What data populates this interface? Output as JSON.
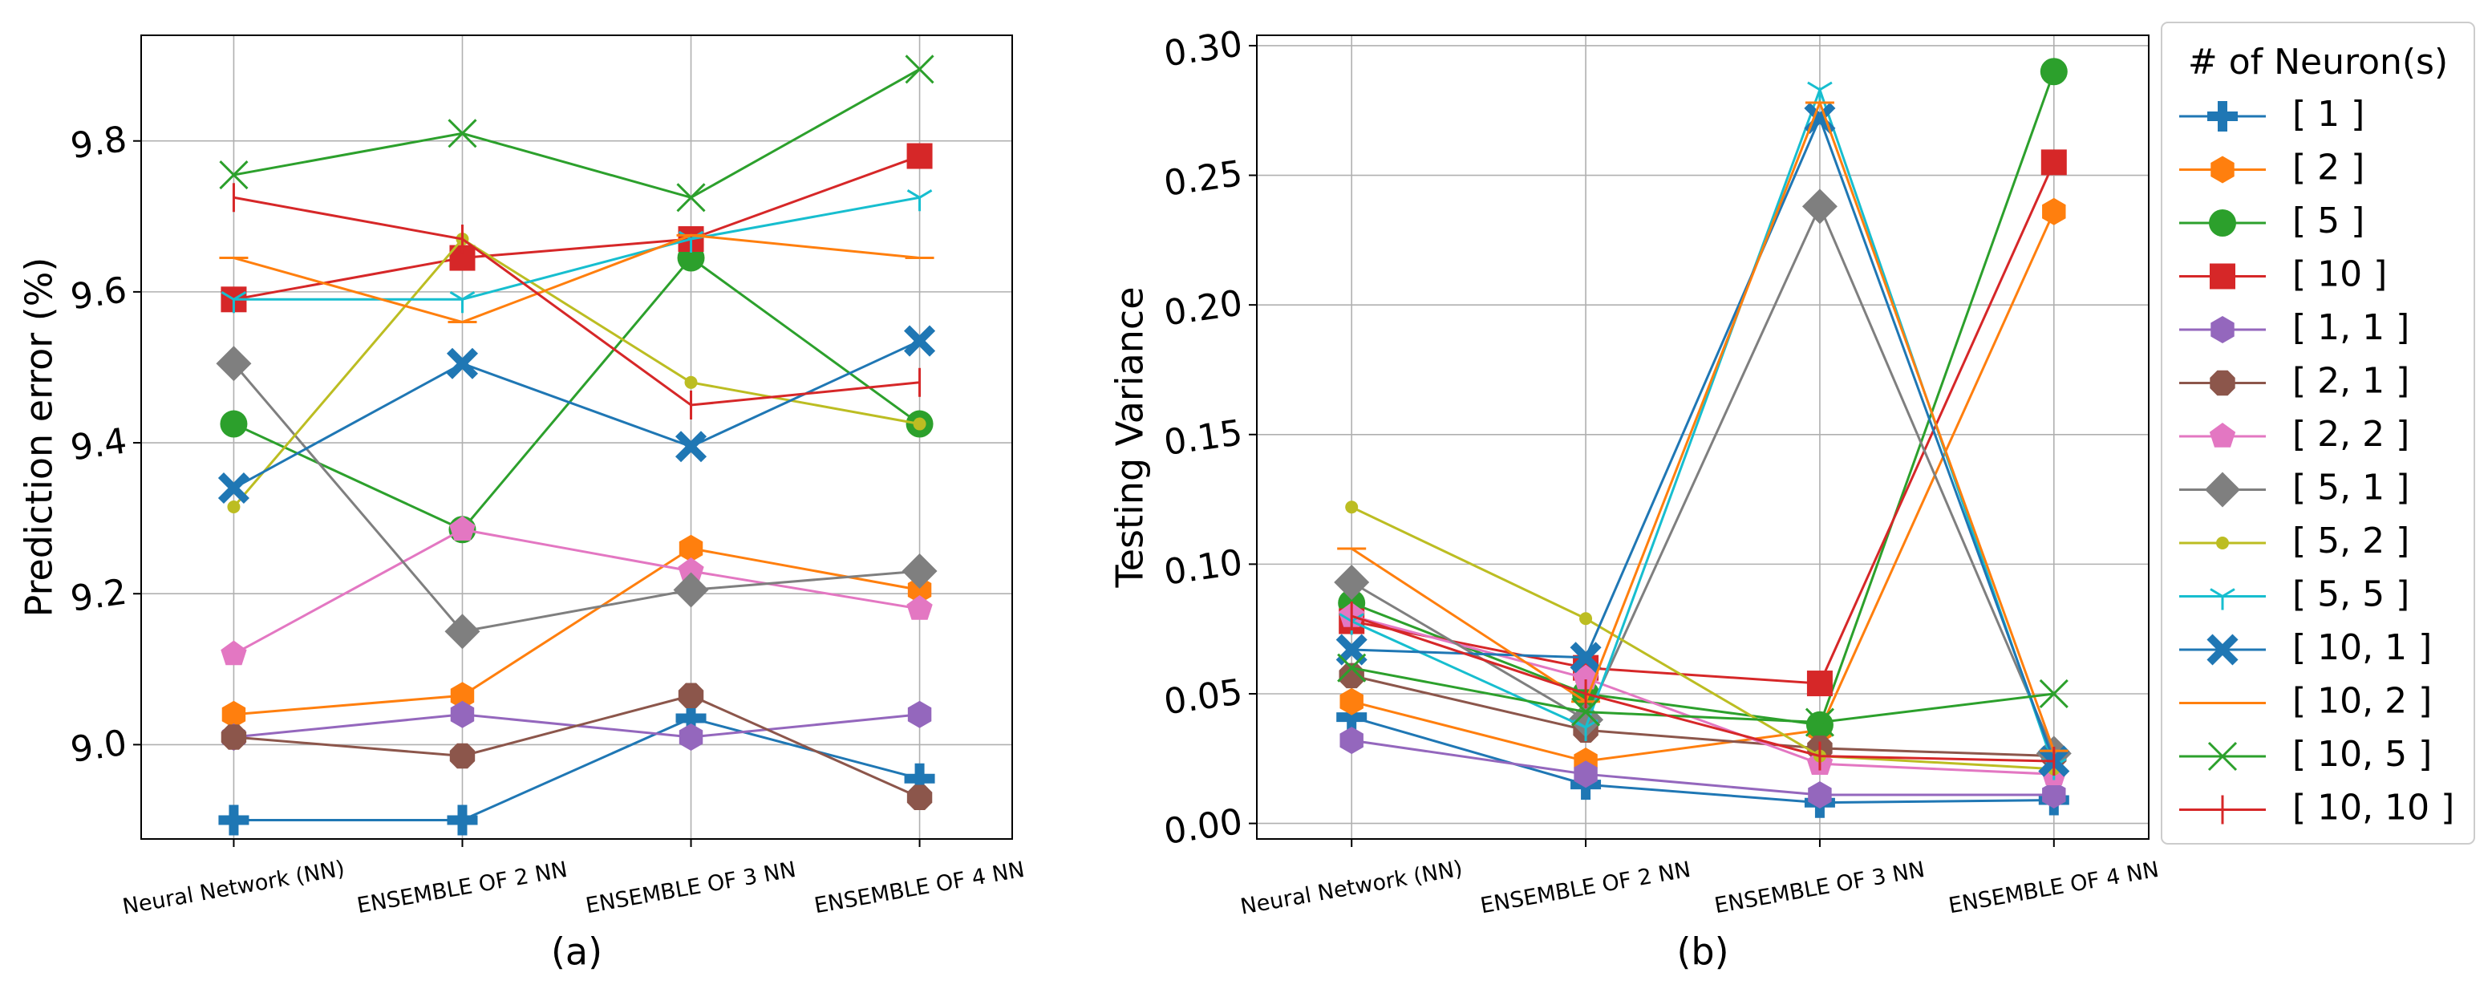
{
  "chart_data": [
    {
      "type": "line",
      "panel_label": "(a)",
      "title": "",
      "xlabel": "",
      "ylabel": "Prediction error (%)",
      "categories": [
        "Neural Network (NN)",
        "ENSEMBLE OF 2 NN",
        "ENSEMBLE OF 3 NN",
        "ENSEMBLE OF 4 NN"
      ],
      "ylim": [
        8.875,
        9.94
      ],
      "yticks": [
        9.0,
        9.2,
        9.4,
        9.6,
        9.8
      ],
      "ytick_labels": [
        "9.0",
        "9.2",
        "9.4",
        "9.6",
        "9.8"
      ],
      "grid": true,
      "series": [
        {
          "name": "[ 1 ]",
          "values": [
            8.9,
            8.9,
            9.035,
            8.955
          ]
        },
        {
          "name": "[ 2 ]",
          "values": [
            9.04,
            9.065,
            9.26,
            9.205
          ]
        },
        {
          "name": "[ 5 ]",
          "values": [
            9.425,
            9.285,
            9.645,
            9.425
          ]
        },
        {
          "name": "[ 10 ]",
          "values": [
            9.59,
            9.645,
            9.67,
            9.78
          ]
        },
        {
          "name": "[ 1, 1 ]",
          "values": [
            9.01,
            9.04,
            9.01,
            9.04
          ]
        },
        {
          "name": "[ 2, 1 ]",
          "values": [
            9.01,
            8.985,
            9.065,
            8.93
          ]
        },
        {
          "name": "[ 2, 2 ]",
          "values": [
            9.12,
            9.285,
            9.23,
            9.18
          ]
        },
        {
          "name": "[ 5, 1 ]",
          "values": [
            9.505,
            9.15,
            9.205,
            9.23
          ]
        },
        {
          "name": "[ 5, 2 ]",
          "values": [
            9.315,
            9.67,
            9.48,
            9.425
          ]
        },
        {
          "name": "[ 5, 5 ]",
          "values": [
            9.59,
            9.59,
            9.67,
            9.725
          ]
        },
        {
          "name": "[ 10, 1 ]",
          "values": [
            9.34,
            9.505,
            9.395,
            9.535
          ]
        },
        {
          "name": "[ 10, 2 ]",
          "values": [
            9.645,
            9.56,
            9.675,
            9.645
          ]
        },
        {
          "name": "[ 10, 5 ]",
          "values": [
            9.755,
            9.81,
            9.725,
            9.895
          ]
        },
        {
          "name": "[ 10, 10 ]",
          "values": [
            9.725,
            9.67,
            9.45,
            9.48
          ]
        }
      ]
    },
    {
      "type": "line",
      "panel_label": "(b)",
      "title": "",
      "xlabel": "",
      "ylabel": "Testing Variance",
      "categories": [
        "Neural Network (NN)",
        "ENSEMBLE OF 2 NN",
        "ENSEMBLE OF 3 NN",
        "ENSEMBLE OF 4 NN"
      ],
      "ylim": [
        -0.006,
        0.304
      ],
      "yticks": [
        0.0,
        0.05,
        0.1,
        0.15,
        0.2,
        0.25,
        0.3
      ],
      "ytick_labels": [
        "0.00",
        "0.05",
        "0.10",
        "0.15",
        "0.20",
        "0.25",
        "0.30"
      ],
      "grid": true,
      "series": [
        {
          "name": "[ 1 ]",
          "values": [
            0.041,
            0.015,
            0.008,
            0.009
          ]
        },
        {
          "name": "[ 2 ]",
          "values": [
            0.047,
            0.024,
            0.036,
            0.236
          ]
        },
        {
          "name": "[ 5 ]",
          "values": [
            0.085,
            0.05,
            0.038,
            0.29
          ]
        },
        {
          "name": "[ 10 ]",
          "values": [
            0.078,
            0.06,
            0.054,
            0.255
          ]
        },
        {
          "name": "[ 1, 1 ]",
          "values": [
            0.032,
            0.019,
            0.011,
            0.011
          ]
        },
        {
          "name": "[ 2, 1 ]",
          "values": [
            0.057,
            0.036,
            0.029,
            0.026
          ]
        },
        {
          "name": "[ 2, 2 ]",
          "values": [
            0.08,
            0.056,
            0.023,
            0.019
          ]
        },
        {
          "name": "[ 5, 1 ]",
          "values": [
            0.093,
            0.04,
            0.238,
            0.027
          ]
        },
        {
          "name": "[ 5, 2 ]",
          "values": [
            0.122,
            0.079,
            0.026,
            0.021
          ]
        },
        {
          "name": "[ 5, 5 ]",
          "values": [
            0.078,
            0.037,
            0.283,
            0.022
          ]
        },
        {
          "name": "[ 10, 1 ]",
          "values": [
            0.067,
            0.064,
            0.272,
            0.024
          ]
        },
        {
          "name": "[ 10, 2 ]",
          "values": [
            0.106,
            0.047,
            0.278,
            0.028
          ]
        },
        {
          "name": "[ 10, 5 ]",
          "values": [
            0.06,
            0.043,
            0.039,
            0.05
          ]
        },
        {
          "name": "[ 10, 10 ]",
          "values": [
            0.08,
            0.05,
            0.026,
            0.024
          ]
        }
      ]
    }
  ],
  "legend": {
    "title": "# of Neuron(s)",
    "position": "right"
  },
  "series_styles": [
    {
      "color": "#1f77b4",
      "marker": "plus"
    },
    {
      "color": "#ff7f0e",
      "marker": "hexagon"
    },
    {
      "color": "#2ca02c",
      "marker": "circle"
    },
    {
      "color": "#d62728",
      "marker": "square"
    },
    {
      "color": "#9467bd",
      "marker": "hexagon"
    },
    {
      "color": "#8c564b",
      "marker": "octagon"
    },
    {
      "color": "#e377c2",
      "marker": "pentagon"
    },
    {
      "color": "#7f7f7f",
      "marker": "diamond"
    },
    {
      "color": "#bcbd22",
      "marker": "point"
    },
    {
      "color": "#17becf",
      "marker": "tri"
    },
    {
      "color": "#1f77b4",
      "marker": "x"
    },
    {
      "color": "#ff7f0e",
      "marker": "hline"
    },
    {
      "color": "#2ca02c",
      "marker": "thinx"
    },
    {
      "color": "#d62728",
      "marker": "vline"
    }
  ]
}
